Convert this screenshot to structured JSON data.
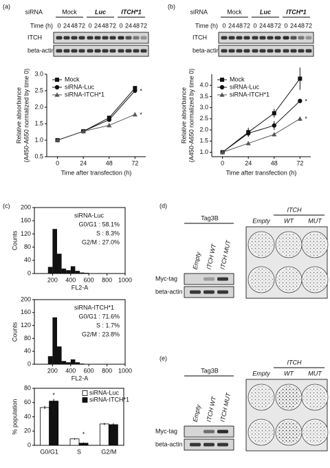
{
  "figure": {
    "panel_labels": [
      "(a)",
      "(b)",
      "(c)",
      "(d)",
      "(e)"
    ],
    "siRNA_blots": [
      {
        "header": "siRNA",
        "groups": [
          "Mock",
          "Luc",
          "ITCH*1"
        ],
        "time_label": "Time (h)",
        "times": [
          0,
          24,
          48,
          72
        ],
        "rows": [
          "ITCH",
          "beta-actin"
        ]
      },
      {
        "header": "siRNA",
        "groups": [
          "Mock",
          "Luc",
          "ITCH*1"
        ],
        "time_label": "Time (h)",
        "times": [
          0,
          24,
          48,
          72
        ],
        "rows": [
          "ITCH",
          "beta-actin"
        ]
      }
    ],
    "tag_panels": [
      {
        "header": "Tag3B",
        "lanes": [
          "Empty",
          "ITCH WT",
          "ITCH MUT"
        ],
        "rows": [
          "Myc-tag",
          "beta-actin"
        ],
        "plate_header": "ITCH",
        "plate_columns": [
          "Empty",
          "WT",
          "MUT"
        ]
      },
      {
        "header": "Tag3B",
        "lanes": [
          "Empty",
          "ITCH WT",
          "ITCH MUT"
        ],
        "rows": [
          "Myc-tag",
          "beta-actin"
        ],
        "plate_header": "ITCH",
        "plate_columns": [
          "Empty",
          "WT",
          "MUT"
        ]
      }
    ]
  },
  "chart_data": [
    {
      "type": "line",
      "xlabel": "Time after transfection (h)",
      "ylabel": [
        "Relative absorbance",
        "(A450-A650 normalized by time 0)"
      ],
      "x": [
        0,
        24,
        48,
        72
      ],
      "xlim": [
        -10,
        82
      ],
      "xticks": [
        0,
        24,
        48,
        72
      ],
      "ylim": [
        0.5,
        3.0
      ],
      "yticks": [
        0.5,
        {
          "value": 1.0,
          "label": "1.0"
        },
        1.5,
        {
          "value": 2.0,
          "label": "2.0"
        },
        2.5,
        {
          "value": 3.0,
          "label": "3.0"
        }
      ],
      "legend": "top-left",
      "annotations": [
        "*",
        "*"
      ],
      "series": [
        {
          "name": "Mock",
          "color": "#111111",
          "marker": "square",
          "values": [
            1.0,
            1.27,
            1.68,
            2.58
          ],
          "errors": [
            0.02,
            0.03,
            0.05,
            0.06
          ]
        },
        {
          "name": "siRNA-Luc",
          "color": "#111111",
          "marker": "circle",
          "values": [
            1.0,
            1.27,
            1.62,
            2.5
          ],
          "errors": [
            0.02,
            0.03,
            0.05,
            0.06
          ]
        },
        {
          "name": "siRNA-ITCH*1",
          "color": "#555555",
          "marker": "triangle",
          "values": [
            1.0,
            1.27,
            1.45,
            1.78
          ],
          "errors": [
            0.02,
            0.03,
            0.04,
            0.05
          ]
        }
      ]
    },
    {
      "type": "line",
      "xlabel": "Time after transfection (h)",
      "ylabel": [
        "Relative absorbance",
        "(A450-A650 normalized by time 0)"
      ],
      "x": [
        0,
        24,
        48,
        72
      ],
      "xlim": [
        -10,
        82
      ],
      "xticks": [
        0,
        24,
        48,
        72
      ],
      "ylim": [
        0.8,
        4.5
      ],
      "yticks": [
        {
          "value": 1.0,
          "label": "1.0"
        },
        1.5,
        {
          "value": 2.0,
          "label": "2.0"
        },
        2.5,
        {
          "value": 3.0,
          "label": "3.0"
        },
        3.5,
        {
          "value": 4.0,
          "label": "4.0"
        }
      ],
      "legend": "top-left",
      "annotations": [
        "*",
        "*"
      ],
      "series": [
        {
          "name": "Mock",
          "color": "#111111",
          "marker": "square",
          "values": [
            1.0,
            1.9,
            2.75,
            4.3
          ],
          "errors": [
            0.03,
            0.2,
            0.2,
            0.5
          ]
        },
        {
          "name": "siRNA-Luc",
          "color": "#111111",
          "marker": "circle",
          "values": [
            1.0,
            1.85,
            2.2,
            3.3
          ],
          "errors": [
            0.03,
            0.15,
            0.2,
            0.1
          ]
        },
        {
          "name": "siRNA-ITCH*1",
          "color": "#555555",
          "marker": "triangle",
          "values": [
            1.0,
            1.4,
            1.8,
            2.5
          ],
          "errors": [
            0.03,
            0.05,
            0.08,
            0.1
          ]
        }
      ]
    },
    {
      "type": "histogram",
      "xlabel": "FL2-A",
      "ylabel": "Counts",
      "bins": [
        0,
        50,
        100,
        150,
        200,
        250,
        300,
        350,
        400,
        450,
        500,
        550,
        600,
        650,
        700,
        750,
        800,
        850,
        900,
        950,
        1000
      ],
      "counts": [
        0,
        0,
        0,
        20,
        135,
        60,
        15,
        10,
        22,
        8,
        3,
        2,
        1,
        1,
        0,
        0,
        0,
        0,
        0,
        0
      ],
      "color": "#111111",
      "xlim": [
        0,
        1000
      ],
      "xticks": [
        200,
        400,
        600,
        800,
        1000
      ],
      "ylim": [
        0,
        200
      ],
      "yticks": [
        0,
        40,
        80,
        120,
        160,
        200
      ],
      "annotations": [
        "siRNA-Luc",
        "G0/G1 : 58.1%",
        "S :  8.3%",
        "G2/M : 27.0%"
      ]
    },
    {
      "type": "histogram",
      "xlabel": "FL2-A",
      "ylabel": "Counts",
      "bins": [
        0,
        50,
        100,
        150,
        200,
        250,
        300,
        350,
        400,
        450,
        500,
        550,
        600,
        650,
        700,
        750,
        800,
        850,
        900,
        950,
        1000
      ],
      "counts": [
        0,
        0,
        0,
        25,
        145,
        55,
        10,
        6,
        15,
        6,
        2,
        1,
        1,
        0,
        0,
        0,
        0,
        0,
        0,
        0
      ],
      "color": "#111111",
      "xlim": [
        0,
        1000
      ],
      "xticks": [
        200,
        400,
        600,
        800,
        1000
      ],
      "ylim": [
        0,
        200
      ],
      "yticks": [
        0,
        40,
        80,
        120,
        160,
        200
      ],
      "annotations": [
        "siRNA-ITCH*1",
        "G0/G1 : 71.6%",
        "S :  1.7%",
        "G2/M : 23.8%"
      ]
    },
    {
      "type": "bar",
      "ylabel": "% population",
      "categories": [
        "G0/G1",
        "S",
        "G2/M"
      ],
      "ylim": [
        0,
        80
      ],
      "yticks": [
        0,
        20,
        40,
        60,
        80
      ],
      "legend": "top-right",
      "annotations": [
        "*",
        "*"
      ],
      "series": [
        {
          "name": "siRNA-Luc",
          "color": "#ffffff",
          "values": [
            53,
            9,
            30
          ],
          "errors": [
            2,
            1,
            1.5
          ]
        },
        {
          "name": "siRNA-ITCH*1",
          "color": "#111111",
          "values": [
            62,
            3,
            29
          ],
          "errors": [
            3,
            1,
            2
          ]
        }
      ]
    }
  ]
}
